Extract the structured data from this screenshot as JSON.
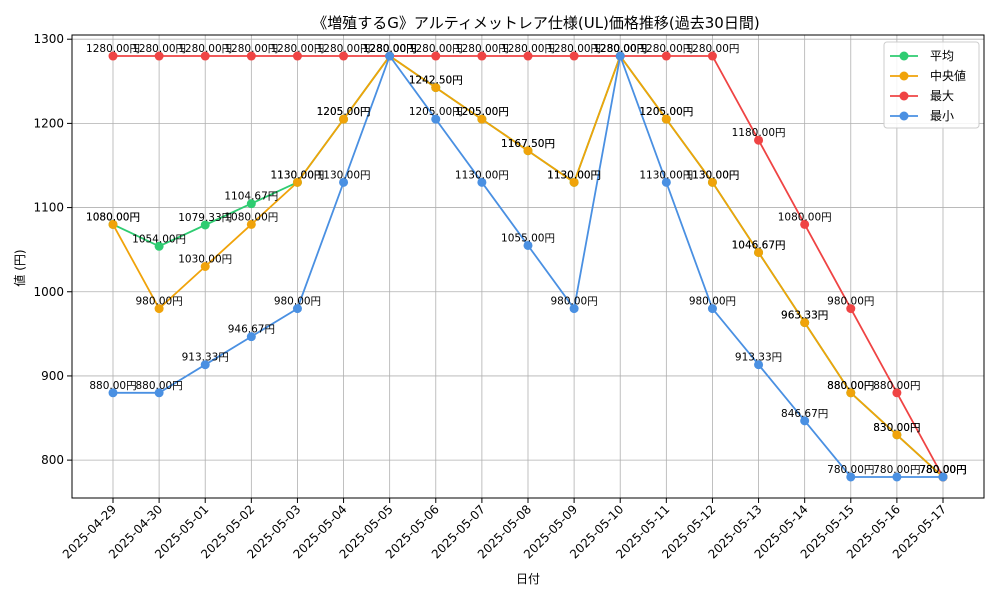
{
  "chart_data": {
    "type": "line",
    "title": "《増殖するG》アルティメットレア仕様(UL)価格推移(過去30日間)",
    "xlabel": "日付",
    "ylabel": "値 (円)",
    "ylim": [
      755,
      1305
    ],
    "yticks": [
      800,
      900,
      1000,
      1100,
      1200,
      1300
    ],
    "grid": true,
    "legend_position": "top-right",
    "label_suffix": "円",
    "categories": [
      "2025-04-29",
      "2025-04-30",
      "2025-05-01",
      "2025-05-02",
      "2025-05-03",
      "2025-05-04",
      "2025-05-05",
      "2025-05-06",
      "2025-05-07",
      "2025-05-08",
      "2025-05-09",
      "2025-05-10",
      "2025-05-11",
      "2025-05-12",
      "2025-05-13",
      "2025-05-14",
      "2025-05-15",
      "2025-05-16",
      "2025-05-17"
    ],
    "series": [
      {
        "name": "平均",
        "color": "#2ecc71",
        "values": [
          1080.0,
          1054.0,
          1079.33,
          1104.67,
          1130.0,
          1205.0,
          1280.0,
          1242.5,
          1205.0,
          1167.5,
          1130.0,
          1280.0,
          1205.0,
          1130.0,
          1046.67,
          963.33,
          880.0,
          830.0,
          780.0
        ]
      },
      {
        "name": "中央値",
        "color": "#f0a30a",
        "values": [
          1080.0,
          980.0,
          1030.0,
          1080.0,
          1130.0,
          1205.0,
          1280.0,
          1242.5,
          1205.0,
          1167.5,
          1130.0,
          1280.0,
          1205.0,
          1130.0,
          1046.67,
          963.33,
          880.0,
          830.0,
          780.0
        ]
      },
      {
        "name": "最大",
        "color": "#ef4444",
        "values": [
          1280.0,
          1280.0,
          1280.0,
          1280.0,
          1280.0,
          1280.0,
          1280.0,
          1280.0,
          1280.0,
          1280.0,
          1280.0,
          1280.0,
          1280.0,
          1280.0,
          1180.0,
          1080.0,
          980.0,
          880.0,
          780.0
        ]
      },
      {
        "name": "最小",
        "color": "#4a90e2",
        "values": [
          880.0,
          880.0,
          913.33,
          946.67,
          980.0,
          1130.0,
          1280.0,
          1205.0,
          1130.0,
          1055.0,
          980.0,
          1280.0,
          1130.0,
          980.0,
          913.33,
          846.67,
          780.0,
          780.0,
          780.0
        ]
      }
    ]
  }
}
